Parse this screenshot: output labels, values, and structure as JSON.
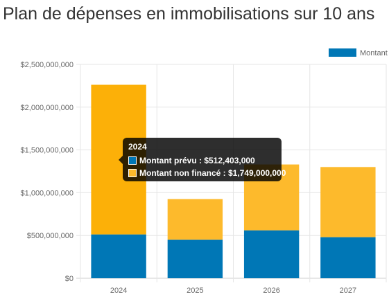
{
  "page": {
    "title": "Plan de dépenses en immobilisations sur 10 ans"
  },
  "chart_data": {
    "type": "bar",
    "stacked": true,
    "categories": [
      "2024",
      "2025",
      "2026",
      "2027"
    ],
    "series": [
      {
        "name": "Montant prévu",
        "color": "#0077B6",
        "values": [
          512403000,
          450000000,
          560000000,
          480000000
        ]
      },
      {
        "name": "Montant non financé",
        "color": "#FDBA2C",
        "values": [
          1749000000,
          475000000,
          770000000,
          820000000
        ]
      }
    ],
    "ylim": [
      0,
      2500000000
    ],
    "y_ticks": [
      "$0",
      "$500,000,000",
      "$1,000,000,000",
      "$1,500,000,000",
      "$2,000,000,000",
      "$2,500,000,000"
    ],
    "grid": true,
    "legend": {
      "position": "top-right",
      "visible_text": "Montant"
    },
    "highlight_color": "#FCB008"
  },
  "tooltip": {
    "title": "2024",
    "rows": [
      {
        "label": "Montant prévu : $512,403,000",
        "color": "#0077B6"
      },
      {
        "label": "Montant non financé : $1,749,000,000",
        "color": "#FDBA2C"
      }
    ]
  }
}
